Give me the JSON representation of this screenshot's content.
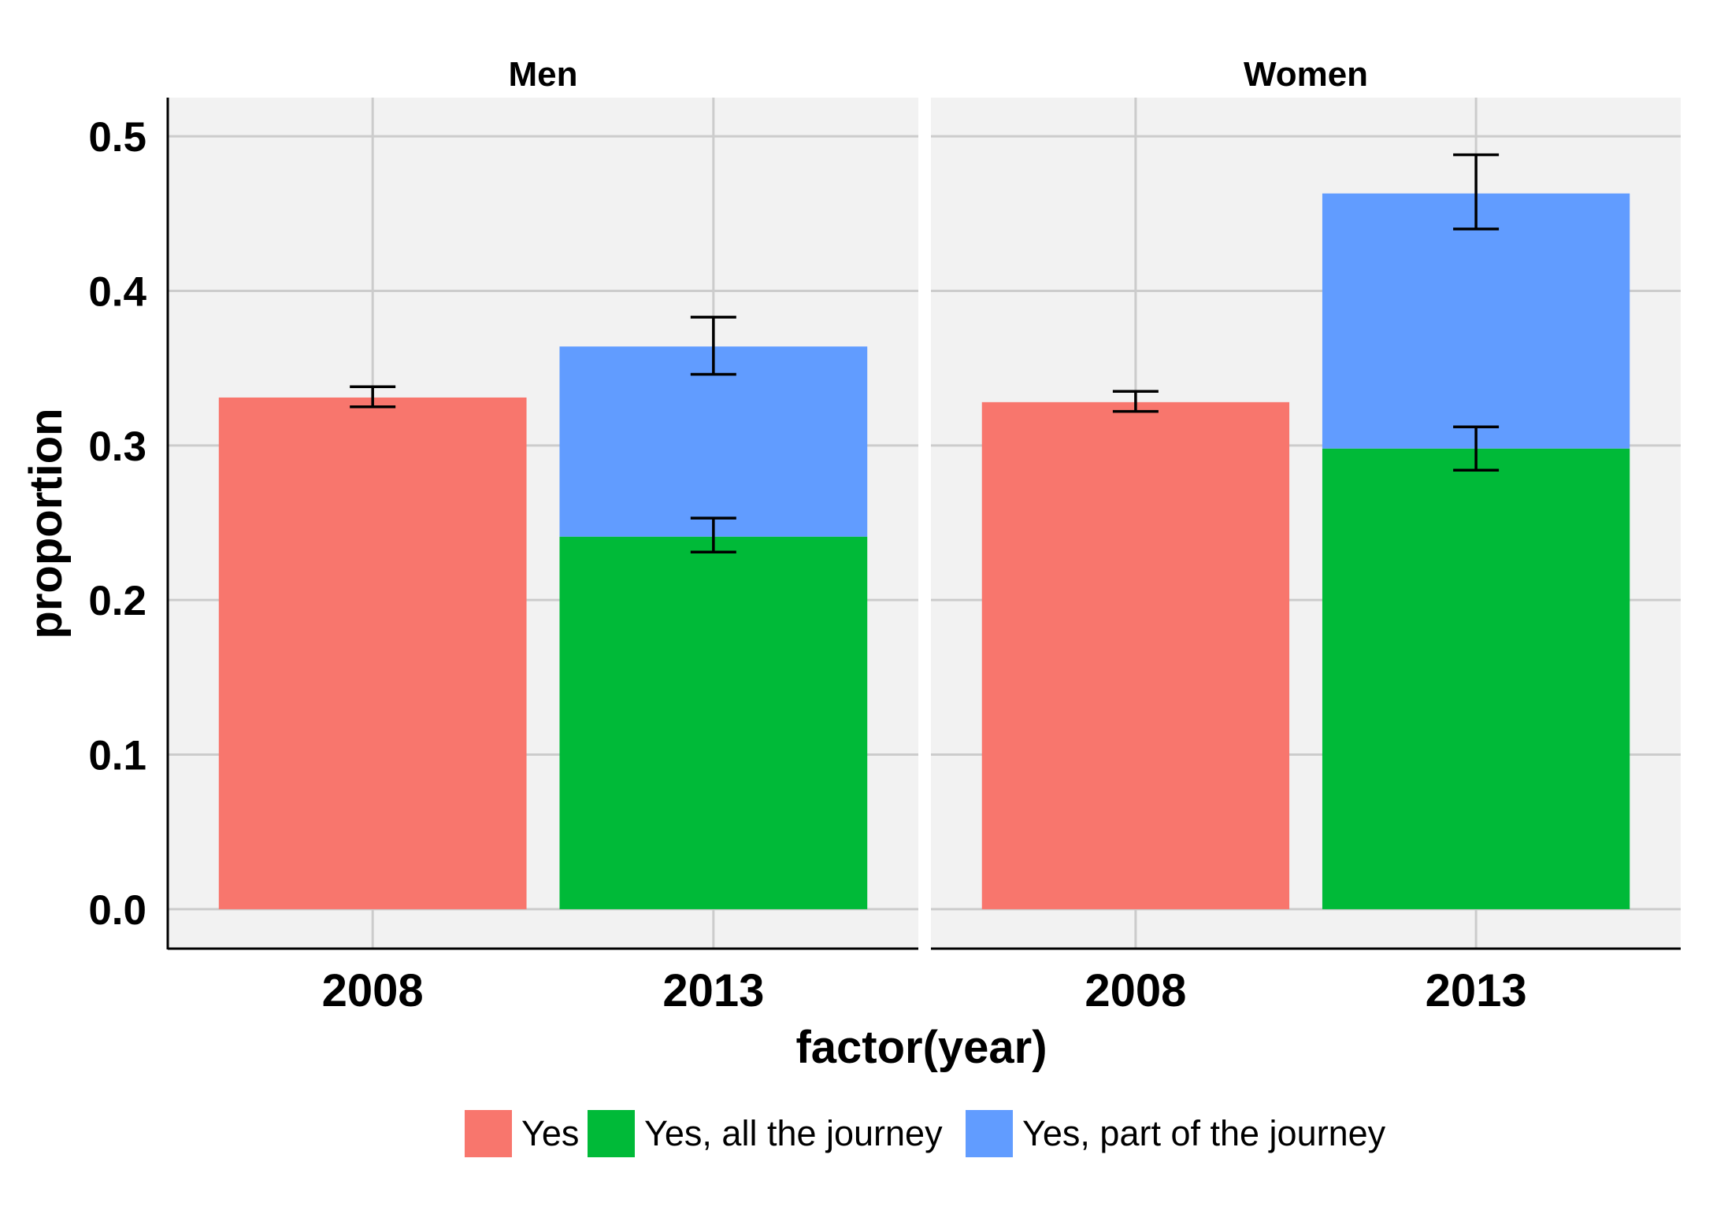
{
  "chart_data": {
    "type": "bar",
    "stacked": true,
    "error_bars": true,
    "facets": [
      "Men",
      "Women"
    ],
    "categories": [
      "2008",
      "2013"
    ],
    "xlabel": "factor(year)",
    "ylabel": "proportion",
    "ylim": [
      -0.025,
      0.525
    ],
    "yticks": [
      "0.0",
      "0.1",
      "0.2",
      "0.3",
      "0.4",
      "0.5"
    ],
    "grid": true,
    "legend_position": "bottom",
    "series": [
      {
        "name": "Yes",
        "color": "#F8766D",
        "values": {
          "Men": {
            "2008": 0.331
          },
          "Women": {
            "2008": 0.328
          }
        },
        "errors": {
          "Men": {
            "2008": [
              0.325,
              0.338
            ]
          },
          "Women": {
            "2008": [
              0.322,
              0.335
            ]
          }
        }
      },
      {
        "name": "Yes, all the journey",
        "color": "#00BA38",
        "values": {
          "Men": {
            "2013": 0.241
          },
          "Women": {
            "2013": 0.298
          }
        },
        "errors": {
          "Men": {
            "2013": [
              0.231,
              0.253
            ]
          },
          "Women": {
            "2013": [
              0.284,
              0.312
            ]
          }
        }
      },
      {
        "name": "Yes, part of the journey",
        "color": "#619CFF",
        "values": {
          "Men": {
            "2013": 0.123
          },
          "Women": {
            "2013": 0.165
          }
        },
        "errors": {
          "Men": {
            "2013": [
              0.346,
              0.383
            ]
          },
          "Women": {
            "2013": [
              0.44,
              0.488
            ]
          }
        }
      }
    ]
  }
}
